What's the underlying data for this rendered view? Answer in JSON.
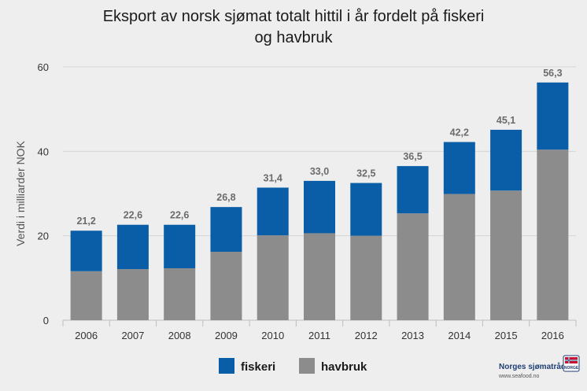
{
  "chart_data": {
    "type": "bar",
    "stacked": true,
    "title": "Eksport av norsk sjømat totalt hittil i år fordelt på fiskeri og havbruk",
    "title_lines": [
      "Eksport av norsk sjømat totalt hittil i år fordelt på fiskeri",
      "og havbruk"
    ],
    "ylabel": "Verdi i milliarder NOK",
    "xlabel": "",
    "ylim": [
      0,
      60
    ],
    "yticks": [
      0,
      20,
      40,
      60
    ],
    "grid": true,
    "legend_position": "bottom",
    "categories": [
      "2006",
      "2007",
      "2008",
      "2009",
      "2010",
      "2011",
      "2012",
      "2013",
      "2014",
      "2015",
      "2016"
    ],
    "series": [
      {
        "name": "havbruk",
        "color": "#8c8c8c",
        "values": [
          11.6,
          12.1,
          12.3,
          16.2,
          20.1,
          20.6,
          20.0,
          25.3,
          29.9,
          30.7,
          40.4
        ]
      },
      {
        "name": "fiskeri",
        "color": "#0a5ea8",
        "values": [
          9.6,
          10.5,
          10.3,
          10.6,
          11.3,
          12.4,
          12.5,
          11.2,
          12.3,
          14.4,
          15.9
        ]
      }
    ],
    "legend_order": [
      "fiskeri",
      "havbruk"
    ],
    "total_labels": [
      "21,2",
      "22,6",
      "22,6",
      "26,8",
      "31,4",
      "33,0",
      "32,5",
      "36,5",
      "42,2",
      "45,1",
      "56,3"
    ]
  },
  "branding": {
    "logo_name": "Norges sjømatråd",
    "logo_url": "www.seafood.no",
    "badge_icon": "norge-flag-icon",
    "badge_text": "NORGE"
  }
}
